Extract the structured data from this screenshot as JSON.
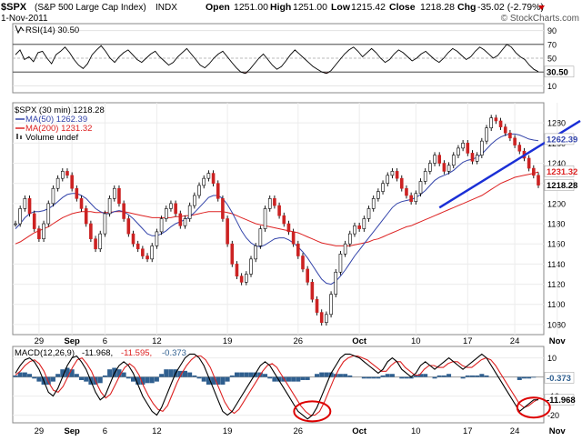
{
  "header": {
    "symbol": "$SPX",
    "name": "(S&P 500 Large Cap Index)",
    "exchange": "INDX",
    "date": "1-Nov-2011",
    "open_label": "Open",
    "open": "1251.00",
    "high_label": "High",
    "high": "1251.00",
    "low_label": "Low",
    "low": "1215.42",
    "close_label": "Close",
    "close": "1218.28",
    "chg_label": "Chg",
    "chg": "-35.02 (-2.79%)",
    "watermark": "© StockCharts.com"
  },
  "rsi_panel": {
    "legend": "RSI(14) 30.50",
    "ticks": [
      90,
      70,
      50,
      30,
      10
    ],
    "ylim": [
      0,
      100
    ],
    "bands": [
      70,
      30
    ],
    "last_label": "30.50",
    "series": [
      55,
      62,
      48,
      52,
      45,
      58,
      60,
      50,
      42,
      55,
      60,
      66,
      58,
      48,
      40,
      35,
      42,
      55,
      62,
      68,
      60,
      50,
      44,
      52,
      58,
      62,
      55,
      48,
      44,
      50,
      56,
      60,
      52,
      46,
      40,
      44,
      52,
      58,
      64,
      56,
      48,
      40,
      36,
      42,
      50,
      56,
      60,
      52,
      44,
      36,
      30,
      28,
      34,
      42,
      50,
      56,
      48,
      40,
      34,
      38,
      46,
      55,
      62,
      56,
      50,
      44,
      38,
      34,
      30,
      28,
      32,
      40,
      48,
      56,
      62,
      66,
      60,
      52,
      58,
      64,
      58,
      50,
      44,
      48,
      56,
      62,
      58,
      52,
      46,
      50,
      56,
      60,
      54,
      48,
      44,
      50,
      58,
      64,
      60,
      54,
      48,
      52,
      60,
      66,
      62,
      56,
      50,
      54,
      62,
      70,
      66,
      58,
      52,
      48,
      40,
      34,
      30.5
    ]
  },
  "price_panel": {
    "legend_title": "$SPX (30 min) 1218.28",
    "legend_ma50": "MA(50) 1262.39",
    "legend_ma200": "MA(200) 1231.32",
    "legend_volume": "Volume undef",
    "ticks": [
      1280,
      1260,
      1240,
      1220,
      1200,
      1180,
      1160,
      1140,
      1120,
      1100,
      1080
    ],
    "ylim": [
      1070,
      1300
    ],
    "last_labels": {
      "ma50": "1262.39",
      "ma200": "1231.32",
      "close": "1218.28"
    },
    "price": [
      1180,
      1195,
      1205,
      1190,
      1175,
      1165,
      1180,
      1200,
      1215,
      1225,
      1232,
      1228,
      1215,
      1205,
      1195,
      1180,
      1165,
      1155,
      1170,
      1190,
      1205,
      1215,
      1200,
      1185,
      1170,
      1160,
      1155,
      1148,
      1145,
      1158,
      1172,
      1185,
      1195,
      1200,
      1190,
      1178,
      1185,
      1198,
      1208,
      1218,
      1225,
      1230,
      1220,
      1205,
      1185,
      1160,
      1140,
      1128,
      1122,
      1130,
      1145,
      1158,
      1175,
      1195,
      1205,
      1198,
      1188,
      1180,
      1172,
      1160,
      1148,
      1135,
      1122,
      1105,
      1092,
      1082,
      1090,
      1110,
      1132,
      1150,
      1160,
      1170,
      1178,
      1175,
      1185,
      1195,
      1205,
      1212,
      1220,
      1228,
      1232,
      1225,
      1215,
      1208,
      1202,
      1210,
      1222,
      1232,
      1240,
      1248,
      1240,
      1232,
      1238,
      1248,
      1255,
      1260,
      1250,
      1242,
      1248,
      1262,
      1275,
      1285,
      1282,
      1276,
      1270,
      1265,
      1258,
      1252,
      1245,
      1235,
      1228,
      1218.28
    ],
    "ma50": [
      1175,
      1180,
      1186,
      1190,
      1192,
      1192,
      1193,
      1195,
      1198,
      1202,
      1206,
      1209,
      1210,
      1210,
      1208,
      1205,
      1200,
      1195,
      1192,
      1190,
      1190,
      1192,
      1193,
      1192,
      1189,
      1185,
      1180,
      1175,
      1170,
      1168,
      1168,
      1170,
      1173,
      1177,
      1180,
      1182,
      1184,
      1187,
      1191,
      1196,
      1201,
      1206,
      1208,
      1208,
      1205,
      1199,
      1191,
      1182,
      1173,
      1166,
      1161,
      1158,
      1157,
      1159,
      1162,
      1165,
      1166,
      1166,
      1164,
      1161,
      1157,
      1152,
      1146,
      1139,
      1132,
      1125,
      1121,
      1120,
      1123,
      1128,
      1134,
      1141,
      1148,
      1154,
      1160,
      1166,
      1172,
      1178,
      1184,
      1190,
      1196,
      1200,
      1202,
      1203,
      1204,
      1206,
      1209,
      1213,
      1218,
      1223,
      1226,
      1228,
      1230,
      1233,
      1237,
      1241,
      1243,
      1244,
      1246,
      1249,
      1254,
      1259,
      1263,
      1266,
      1268,
      1269,
      1269,
      1268,
      1266,
      1264,
      1263,
      1262.39
    ],
    "ma200": [
      1160,
      1162,
      1165,
      1168,
      1171,
      1173,
      1175,
      1177,
      1180,
      1183,
      1186,
      1188,
      1190,
      1191,
      1192,
      1192,
      1192,
      1191,
      1191,
      1191,
      1191,
      1192,
      1192,
      1192,
      1191,
      1190,
      1189,
      1188,
      1187,
      1186,
      1186,
      1186,
      1186,
      1186,
      1187,
      1187,
      1188,
      1188,
      1189,
      1190,
      1191,
      1192,
      1192,
      1192,
      1192,
      1191,
      1190,
      1188,
      1186,
      1184,
      1182,
      1180,
      1179,
      1178,
      1177,
      1176,
      1175,
      1174,
      1173,
      1172,
      1171,
      1169,
      1167,
      1165,
      1163,
      1161,
      1160,
      1159,
      1158,
      1158,
      1158,
      1158,
      1159,
      1160,
      1161,
      1162,
      1164,
      1165,
      1167,
      1169,
      1171,
      1173,
      1175,
      1177,
      1178,
      1180,
      1182,
      1184,
      1186,
      1188,
      1190,
      1192,
      1194,
      1196,
      1198,
      1200,
      1202,
      1204,
      1206,
      1208,
      1211,
      1214,
      1217,
      1220,
      1222,
      1224,
      1226,
      1227,
      1228,
      1229,
      1230,
      1231.32
    ],
    "trendline": [
      [
        1,
        1196
      ],
      [
        1.36,
        1248
      ]
    ]
  },
  "macd_panel": {
    "legend_label": "MACD(12,26,9)",
    "legend_macd": "-11.968,",
    "legend_signal": "-11.595,",
    "legend_hist": "-0.373",
    "ticks": [
      10,
      0,
      -10,
      -20
    ],
    "ylim": [
      -24,
      16
    ],
    "last_labels": {
      "hist": "-0.373",
      "macd": "-11.968"
    },
    "macd": [
      2,
      6,
      9,
      10,
      8,
      4,
      -2,
      -8,
      -10,
      -6,
      0,
      6,
      10,
      11,
      8,
      4,
      -2,
      -8,
      -12,
      -10,
      -4,
      2,
      6,
      8,
      6,
      2,
      -4,
      -10,
      -14,
      -18,
      -20,
      -16,
      -10,
      -4,
      2,
      6,
      10,
      12,
      12,
      10,
      6,
      0,
      -6,
      -12,
      -18,
      -20,
      -18,
      -14,
      -10,
      -6,
      -2,
      2,
      6,
      8,
      6,
      2,
      -2,
      -6,
      -10,
      -14,
      -18,
      -20,
      -22,
      -20,
      -16,
      -10,
      -4,
      2,
      6,
      10,
      12,
      12,
      11,
      10,
      8,
      6,
      4,
      2,
      4,
      8,
      10,
      8,
      4,
      2,
      0,
      2,
      6,
      8,
      6,
      4,
      6,
      8,
      10,
      8,
      6,
      4,
      6,
      8,
      10,
      12,
      10,
      6,
      2,
      -2,
      -6,
      -10,
      -14,
      -18,
      -16,
      -14,
      -12,
      -11.968
    ],
    "signal": [
      1,
      3,
      6,
      8,
      9,
      7,
      3,
      -3,
      -7,
      -8,
      -5,
      0,
      5,
      9,
      10,
      7,
      3,
      -3,
      -8,
      -11,
      -9,
      -4,
      1,
      5,
      7,
      5,
      1,
      -5,
      -10,
      -14,
      -17,
      -18,
      -15,
      -9,
      -3,
      2,
      6,
      9,
      11,
      11,
      9,
      5,
      -1,
      -7,
      -13,
      -17,
      -19,
      -17,
      -13,
      -9,
      -5,
      -1,
      3,
      6,
      7,
      5,
      1,
      -3,
      -7,
      -11,
      -15,
      -18,
      -20,
      -20,
      -18,
      -13,
      -7,
      -1,
      4,
      8,
      10,
      11,
      11,
      10,
      9,
      7,
      5,
      3,
      3,
      6,
      8,
      8,
      5,
      3,
      1,
      1,
      4,
      6,
      6,
      5,
      5,
      7,
      8,
      8,
      6,
      5,
      5,
      7,
      9,
      10,
      9,
      6,
      2,
      -2,
      -6,
      -10,
      -14,
      -16,
      -15,
      -13,
      -11.595
    ]
  },
  "x_axis": {
    "labels": [
      "29",
      "Sep",
      "6",
      "12",
      "19",
      "26",
      "Oct",
      "10",
      "17",
      "24",
      "Nov"
    ],
    "positions": [
      5,
      12,
      19,
      30,
      45,
      60,
      73,
      85,
      96,
      106,
      115
    ]
  },
  "colors": {
    "price": "#000000",
    "ma50": "#3344aa",
    "ma200": "#dd2222",
    "macd_line": "#000000",
    "signal_line": "#dd2222",
    "histogram": "#2f5f8f",
    "trendline": "#1a2fd6",
    "annotation": "#dd0000",
    "chg": "#cc0000"
  }
}
